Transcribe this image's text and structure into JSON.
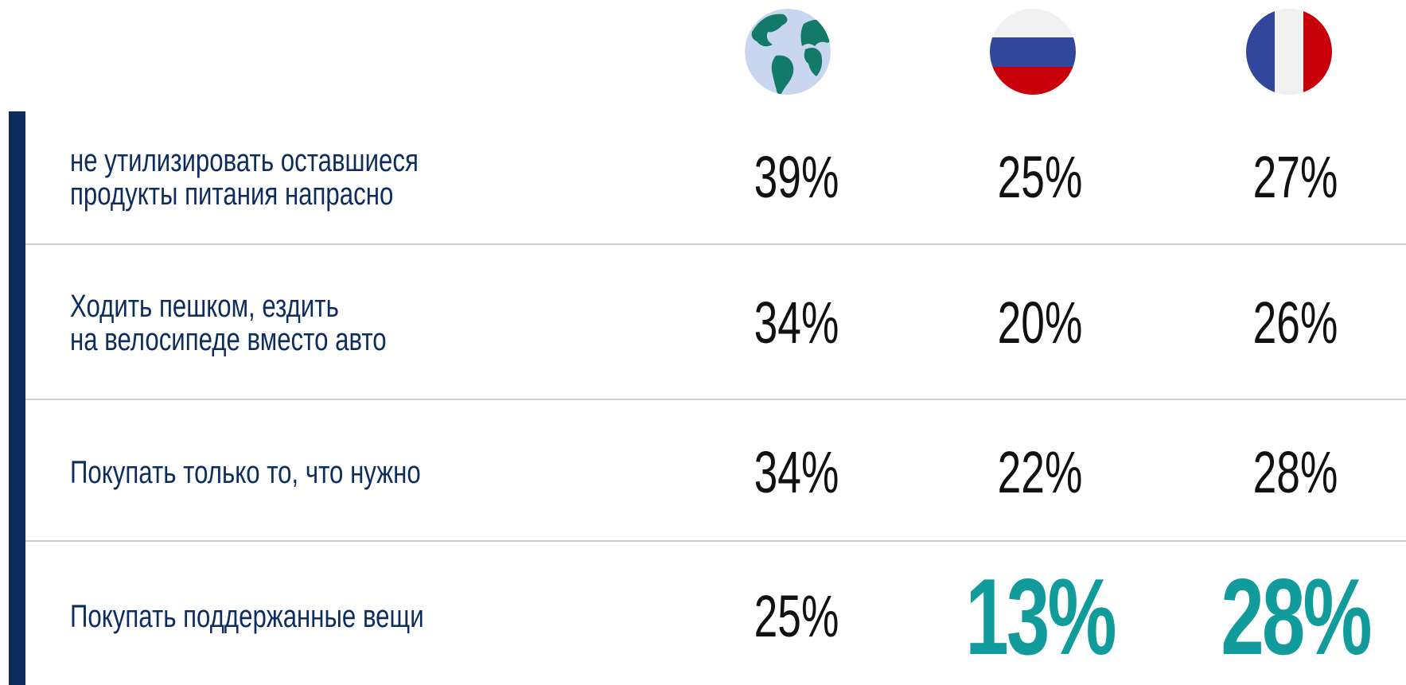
{
  "table": {
    "rows": [
      {
        "label": [
          "не утилизировать оставшиеся",
          "продукты питания напрасно"
        ],
        "cells": [
          {
            "text": "39%"
          },
          {
            "text": "25%"
          },
          {
            "text": "27%"
          }
        ]
      },
      {
        "label": [
          "Ходить пешком, ездить",
          "на велосипеде вместо авто"
        ],
        "cells": [
          {
            "text": "34%"
          },
          {
            "text": "20%"
          },
          {
            "text": "26%"
          }
        ]
      },
      {
        "label": [
          "Покупать только то, что нужно"
        ],
        "cells": [
          {
            "text": "34%"
          },
          {
            "text": "22%"
          },
          {
            "text": "28%"
          }
        ]
      },
      {
        "label": [
          "Покупать поддержанные вещи"
        ],
        "cells": [
          {
            "text": "25%"
          },
          {
            "text": "13%",
            "highlight": true
          },
          {
            "text": "28%",
            "highlight": true
          }
        ]
      }
    ]
  }
}
